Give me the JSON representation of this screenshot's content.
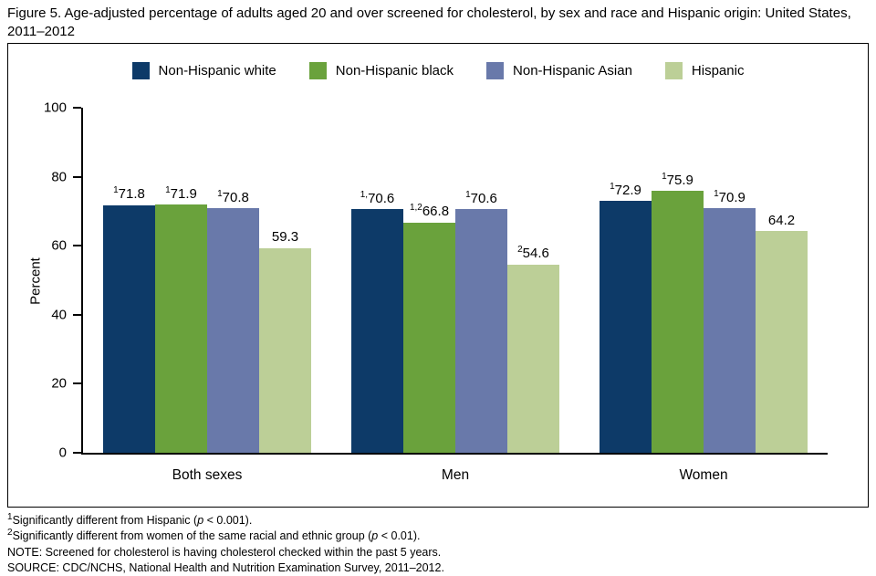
{
  "title": "Figure 5. Age-adjusted percentage of adults aged 20 and over screened for cholesterol, by sex and race and Hispanic origin: United States, 2011–2012",
  "chart_data": {
    "type": "bar",
    "title": "Figure 5. Age-adjusted percentage of adults aged 20 and over screened for cholesterol, by sex and race and Hispanic origin: United States, 2011–2012",
    "categories": [
      "Both sexes",
      "Men",
      "Women"
    ],
    "series": [
      {
        "name": "Non-Hispanic white",
        "color": "#0d3a68",
        "values": [
          71.8,
          70.6,
          72.9
        ],
        "sups": [
          "1",
          "1,",
          "1"
        ]
      },
      {
        "name": "Non-Hispanic black",
        "color": "#6aa23c",
        "values": [
          71.9,
          66.8,
          75.9
        ],
        "sups": [
          "1",
          "1,2",
          "1"
        ]
      },
      {
        "name": "Non-Hispanic Asian",
        "color": "#6979aa",
        "values": [
          70.8,
          70.6,
          70.9
        ],
        "sups": [
          "1",
          "1",
          "1"
        ]
      },
      {
        "name": "Hispanic",
        "color": "#bccf97",
        "values": [
          59.3,
          54.6,
          64.2
        ],
        "sups": [
          "",
          "2",
          ""
        ]
      }
    ],
    "xlabel": "",
    "ylabel": "Percent",
    "ylim": [
      0,
      100
    ],
    "yticks": [
      0,
      20,
      40,
      60,
      80,
      100
    ],
    "grid": false,
    "legend_position": "top"
  },
  "footnotes": [
    {
      "sup": "1",
      "text": "Significantly different from Hispanic (p < 0.001)."
    },
    {
      "sup": "2",
      "text": "Significantly different from women of the same racial and ethnic group (p < 0.01)."
    },
    {
      "sup": "",
      "text": "NOTE: Screened for cholesterol is having cholesterol checked within the past 5 years."
    },
    {
      "sup": "",
      "text": "SOURCE: CDC/NCHS, National Health and Nutrition Examination Survey, 2011–2012."
    }
  ]
}
